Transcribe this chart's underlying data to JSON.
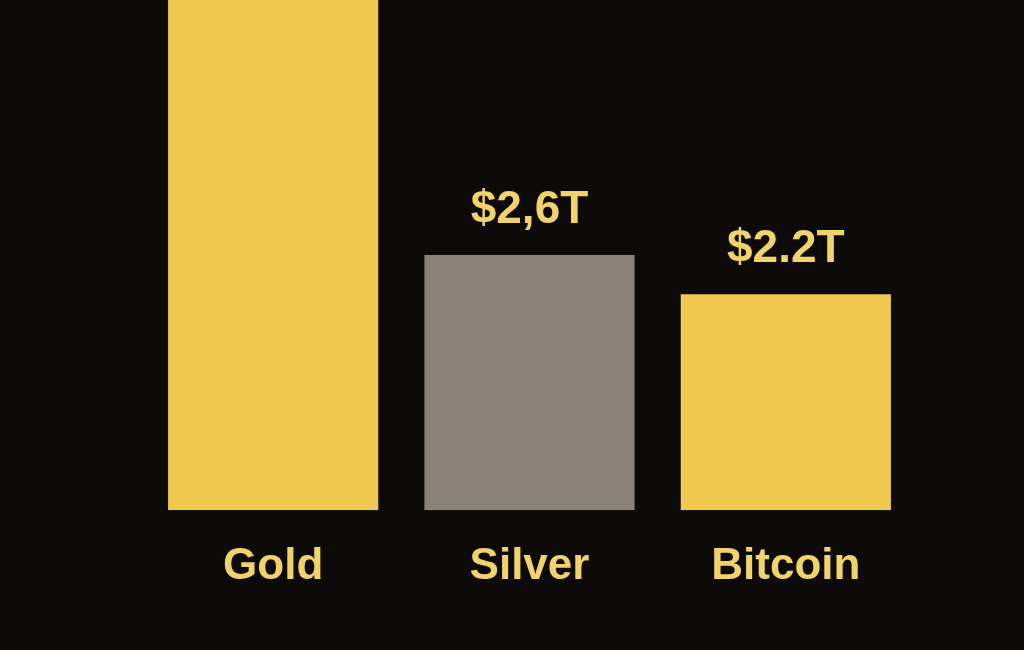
{
  "chart_data": {
    "type": "bar",
    "categories": [
      "Gold",
      "Silver",
      "Bitcoin"
    ],
    "values": [
      5.2,
      2.6,
      2.2
    ],
    "colors": [
      "#f0c850",
      "#8a8279",
      "#f0c850"
    ],
    "value_labels": [
      null,
      "$2,6T",
      "$2.2T"
    ],
    "ylim": [
      0,
      5.2
    ],
    "tick_labels": "x",
    "grid": false,
    "legend": false
  }
}
